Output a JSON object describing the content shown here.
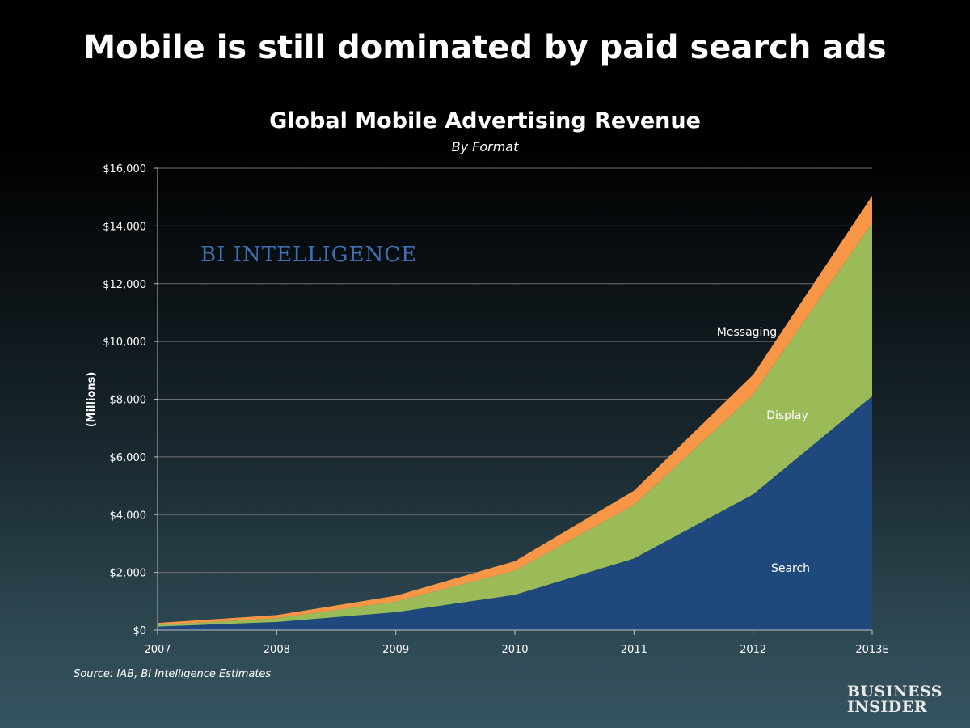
{
  "slide": {
    "title": "Mobile is still dominated by paid search ads",
    "source": "Source: IAB, BI Intelligence Estimates",
    "watermark": "BI INTELLIGENCE",
    "logo_line1": "BUSINESS",
    "logo_line2": "INSIDER"
  },
  "chart_data": {
    "type": "area",
    "stacked": true,
    "title": "Global Mobile Advertising Revenue",
    "subtitle": "By Format",
    "xlabel": "",
    "ylabel": "(Millions)",
    "x": [
      "2007",
      "2008",
      "2009",
      "2010",
      "2011",
      "2012",
      "2013E"
    ],
    "ylim": [
      0,
      16000
    ],
    "yticks": [
      0,
      2000,
      4000,
      6000,
      8000,
      10000,
      12000,
      14000,
      16000
    ],
    "ytick_labels": [
      "$0",
      "$2,000",
      "$4,000",
      "$6,000",
      "$8,000",
      "$10,000",
      "$12,000",
      "$14,000",
      "$16,000"
    ],
    "grid": true,
    "series": [
      {
        "name": "Search",
        "values": [
          120,
          280,
          620,
          1220,
          2480,
          4700,
          8100
        ],
        "color": "#1f497d"
      },
      {
        "name": "Display",
        "values": [
          60,
          130,
          370,
          840,
          1850,
          3450,
          6000
        ],
        "color": "#9bbb59"
      },
      {
        "name": "Messaging",
        "values": [
          70,
          110,
          200,
          330,
          500,
          700,
          950
        ],
        "color": "#f79646"
      }
    ],
    "colors": {
      "grid": "#6f6f6f",
      "axis": "#bfbfbf",
      "text": "#ffffff"
    }
  }
}
